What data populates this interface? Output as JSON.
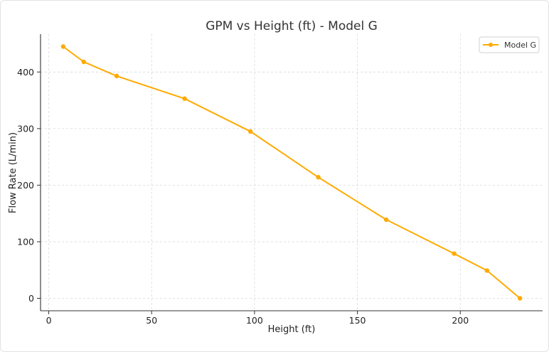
{
  "chart_data": {
    "type": "line",
    "title": "GPM vs Height (ft) - Model G",
    "xlabel": "Height (ft)",
    "ylabel": "Flow Rate (L/min)",
    "xlim": [
      -4,
      240
    ],
    "ylim": [
      -22,
      467
    ],
    "xticks": [
      "0",
      "50",
      "100",
      "150",
      "200"
    ],
    "yticks": [
      "0",
      "100",
      "200",
      "300",
      "400"
    ],
    "grid": true,
    "legend_position": "top-right",
    "series": [
      {
        "name": "Model G",
        "color": "#ffaa00",
        "x": [
          7,
          17,
          33,
          66,
          98,
          131,
          164,
          197,
          213,
          229
        ],
        "y": [
          445,
          418,
          393,
          353,
          295,
          214,
          139,
          79,
          49,
          0
        ]
      }
    ]
  }
}
